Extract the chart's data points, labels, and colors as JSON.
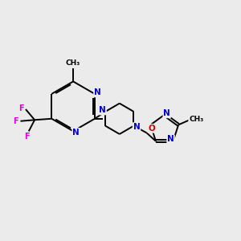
{
  "bg_color": "#ebebeb",
  "bond_color": "#000000",
  "atom_colors": {
    "N": "#0000cc",
    "O": "#cc0000",
    "F": "#dd00dd",
    "C": "#000000"
  },
  "lw": 1.4,
  "dbl_off": 0.06
}
